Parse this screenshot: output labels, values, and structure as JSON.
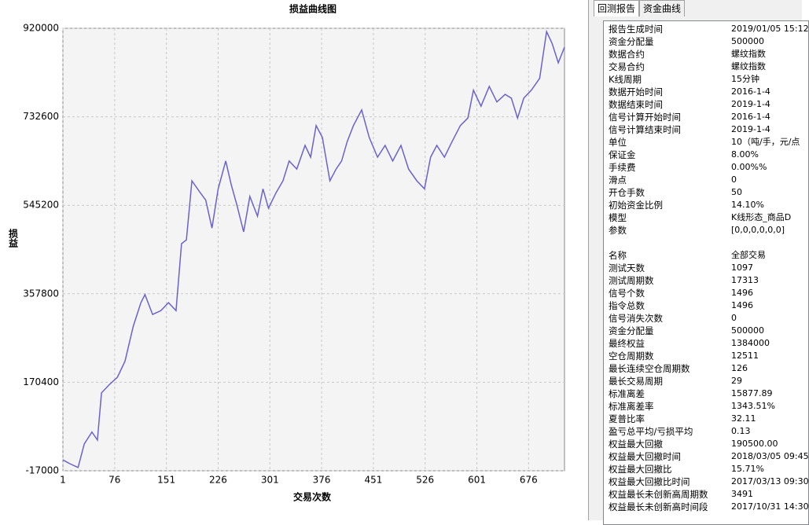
{
  "chart_data": {
    "type": "line",
    "title": "损益曲线图",
    "x_label": "交易次数",
    "y_label": "损益",
    "color": "#6a62cc",
    "x": [
      1,
      11,
      23,
      32,
      43,
      51,
      57,
      68,
      80,
      91,
      103,
      114,
      120,
      131,
      143,
      154,
      165,
      173,
      180,
      188,
      200,
      208,
      217,
      226,
      237,
      245,
      253,
      263,
      272,
      283,
      291,
      299,
      310,
      320,
      329,
      340,
      352,
      360,
      368,
      377,
      388,
      397,
      405,
      413,
      422,
      434,
      445,
      457,
      468,
      479,
      491,
      502,
      514,
      525,
      534,
      543,
      554,
      565,
      577,
      588,
      596,
      607,
      619,
      630,
      642,
      651,
      660,
      669,
      680,
      692,
      702,
      710,
      719,
      728
    ],
    "values": [
      6000,
      -2000,
      -10000,
      40000,
      65000,
      48000,
      148000,
      165000,
      181000,
      215000,
      289000,
      339000,
      356000,
      314000,
      322000,
      339000,
      322000,
      464000,
      472000,
      597000,
      572000,
      556000,
      497000,
      580000,
      639000,
      589000,
      547000,
      489000,
      564000,
      522000,
      580000,
      539000,
      572000,
      597000,
      639000,
      622000,
      672000,
      647000,
      714000,
      689000,
      597000,
      622000,
      639000,
      680000,
      714000,
      747000,
      689000,
      647000,
      672000,
      639000,
      672000,
      622000,
      597000,
      580000,
      647000,
      672000,
      647000,
      680000,
      714000,
      730000,
      789000,
      755000,
      797000,
      764000,
      780000,
      772000,
      730000,
      772000,
      789000,
      814000,
      913000,
      888000,
      847000,
      880000
    ],
    "xlim": [
      1,
      728
    ],
    "ylim": [
      -17000,
      920000
    ],
    "xticks": [
      1,
      76,
      151,
      226,
      301,
      376,
      451,
      526,
      601,
      676
    ],
    "yticks": [
      -17000,
      170400,
      357800,
      545200,
      732600,
      920000
    ],
    "grid": true
  },
  "panel": {
    "tabs": [
      "回测报告",
      "资金曲线"
    ],
    "sections": [
      [
        [
          "报告生成时间",
          "2019/01/05 15:12"
        ],
        [
          "资金分配量",
          "500000"
        ],
        [
          "数据合约",
          "螺纹指数"
        ],
        [
          "交易合约",
          "螺纹指数"
        ],
        [
          "K线周期",
          "15分钟"
        ],
        [
          "数据开始时间",
          "2016-1-4"
        ],
        [
          "数据结束时间",
          "2019-1-4"
        ],
        [
          "信号计算开始时间",
          "2016-1-4"
        ],
        [
          "信号计算结束时间",
          "2019-1-4"
        ],
        [
          "单位",
          "10（吨/手，元/点"
        ],
        [
          "保证金",
          "8.00%"
        ],
        [
          "手续费",
          "0.00%%"
        ],
        [
          "滑点",
          "0"
        ],
        [
          "开仓手数",
          "50"
        ],
        [
          "初始资金比例",
          "14.10%"
        ],
        [
          "模型",
          "K线形态_商品D"
        ],
        [
          "参数",
          "[0,0,0,0,0,0]"
        ]
      ],
      [
        [
          "名称",
          "全部交易"
        ],
        [
          "测试天数",
          "1097"
        ],
        [
          "测试周期数",
          "17313"
        ],
        [
          "信号个数",
          "1496"
        ],
        [
          "指令总数",
          "1496"
        ],
        [
          "信号消失次数",
          "0"
        ],
        [
          "资金分配量",
          "500000"
        ],
        [
          "最终权益",
          "1384000"
        ],
        [
          "空仓周期数",
          "12511"
        ],
        [
          "最长连续空仓周期数",
          "126"
        ],
        [
          "最长交易周期",
          "29"
        ],
        [
          "标准离差",
          "15877.89"
        ],
        [
          "标准离差率",
          "1343.51%"
        ],
        [
          "夏普比率",
          "32.11"
        ],
        [
          "盈亏总平均/亏损平均",
          "0.13"
        ],
        [
          "权益最大回撤",
          "190500.00"
        ],
        [
          "权益最大回撤时间",
          "2018/03/05 09:45"
        ],
        [
          "权益最大回撤比",
          "15.71%"
        ],
        [
          "权益最大回撤比时间",
          "2017/03/13 09:30"
        ],
        [
          "权益最长未创新高周期数",
          "3491"
        ],
        [
          "权益最长未创新高时间段",
          "2017/10/31 14:30"
        ]
      ]
    ]
  }
}
